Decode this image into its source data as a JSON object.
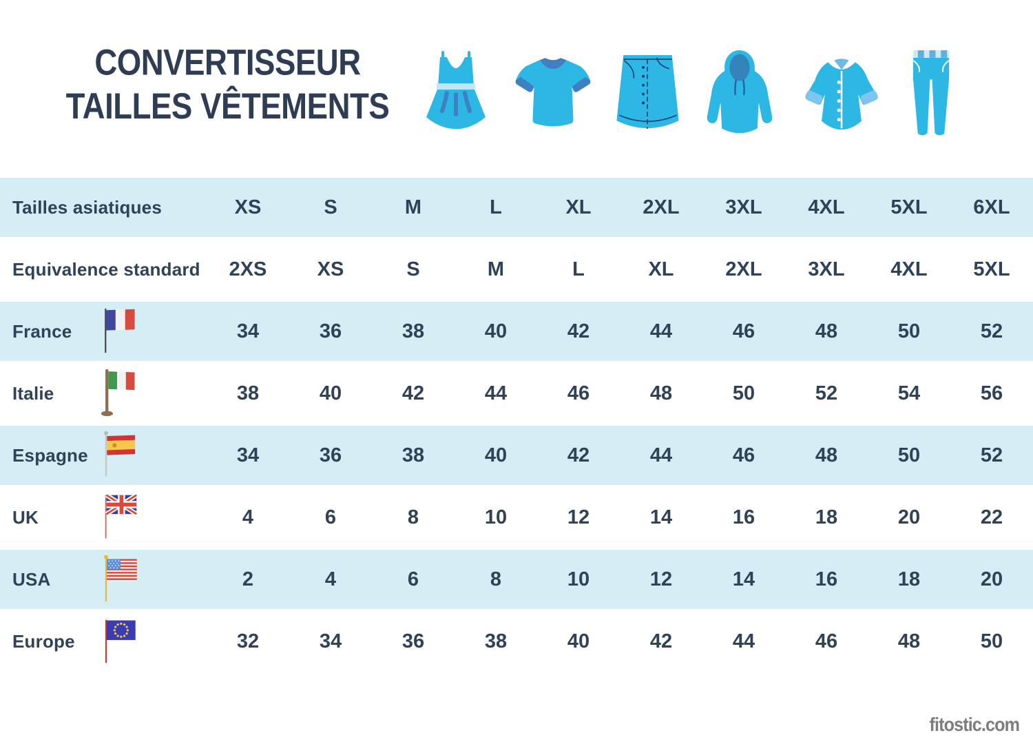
{
  "title": {
    "line1": "CONVERTISSEUR",
    "line2": "TAILLES VÊTEMENTS"
  },
  "header_icons": [
    {
      "name": "dress-icon"
    },
    {
      "name": "tshirt-icon"
    },
    {
      "name": "skirt-icon"
    },
    {
      "name": "hoodie-icon"
    },
    {
      "name": "coat-icon"
    },
    {
      "name": "pants-icon"
    }
  ],
  "chart_data": {
    "type": "table",
    "title": "CONVERTISSEUR TAILLES VÊTEMENTS",
    "rows": [
      {
        "label": "Tailles asiatiques",
        "flag": null,
        "values": [
          "XS",
          "S",
          "M",
          "L",
          "XL",
          "2XL",
          "3XL",
          "4XL",
          "5XL",
          "6XL"
        ]
      },
      {
        "label": "Equivalence standard",
        "flag": null,
        "values": [
          "2XS",
          "XS",
          "S",
          "M",
          "L",
          "XL",
          "2XL",
          "3XL",
          "4XL",
          "5XL"
        ]
      },
      {
        "label": "France",
        "flag": "france",
        "values": [
          34,
          36,
          38,
          40,
          42,
          44,
          46,
          48,
          50,
          52
        ]
      },
      {
        "label": "Italie",
        "flag": "italie",
        "values": [
          38,
          40,
          42,
          44,
          46,
          48,
          50,
          52,
          54,
          56
        ]
      },
      {
        "label": "Espagne",
        "flag": "espagne",
        "values": [
          34,
          36,
          38,
          40,
          42,
          44,
          46,
          48,
          50,
          52
        ]
      },
      {
        "label": "UK",
        "flag": "uk",
        "values": [
          4,
          6,
          8,
          10,
          12,
          14,
          16,
          18,
          20,
          22
        ]
      },
      {
        "label": "USA",
        "flag": "usa",
        "values": [
          2,
          4,
          6,
          8,
          10,
          12,
          14,
          16,
          18,
          20
        ]
      },
      {
        "label": "Europe",
        "flag": "europe",
        "values": [
          32,
          34,
          36,
          38,
          40,
          42,
          44,
          46,
          48,
          50
        ]
      }
    ]
  },
  "footer": {
    "watermark": "fitostic.com"
  },
  "colors": {
    "accent_cyan": "#2cb7e5",
    "accent_dark_blue": "#3e80c0",
    "navy_text": "#2f4258",
    "row_blue": "#d5edf4",
    "row_white": "#ffffff",
    "watermark_gray": "#7d7d7d"
  }
}
